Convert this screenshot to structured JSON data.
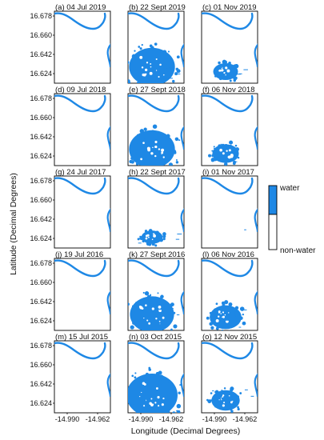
{
  "figure": {
    "y_axis_title": "Latitude (Decimal Degrees)",
    "x_axis_title": "Longitude (Decimal Degrees)",
    "y_ticks": [
      "16.678",
      "16.660",
      "16.642",
      "16.624"
    ],
    "x_ticks": [
      "-14.990",
      "-14.962"
    ],
    "legend": {
      "water_label": "water",
      "nonwater_label": "non-water",
      "water_color": "#1e88e5",
      "nonwater_color": "#ffffff"
    },
    "panels": [
      {
        "title": "(a) 04 Jul 2019",
        "flood_level": 0,
        "marsh_level": 0
      },
      {
        "title": "(b) 22 Sept 2019",
        "flood_level": 0.85,
        "marsh_level": 0.3
      },
      {
        "title": "(c) 01 Nov 2019",
        "flood_level": 0.25,
        "marsh_level": 0.6
      },
      {
        "title": "(d) 09 Jul 2018",
        "flood_level": 0,
        "marsh_level": 0
      },
      {
        "title": "(e) 27 Sept 2018",
        "flood_level": 0.85,
        "marsh_level": 0.3
      },
      {
        "title": "(f) 06 Nov 2018",
        "flood_level": 0.3,
        "marsh_level": 0.6
      },
      {
        "title": "(g) 24 Jul 2017",
        "flood_level": 0,
        "marsh_level": 0
      },
      {
        "title": "(h) 22 Sept 2017",
        "flood_level": 0.15,
        "marsh_level": 0.3
      },
      {
        "title": "(i) 01 Nov 2017",
        "flood_level": 0,
        "marsh_level": 0.1
      },
      {
        "title": "(j) 19 Jul 2016",
        "flood_level": 0,
        "marsh_level": 0
      },
      {
        "title": "(k) 27 Sept 2016",
        "flood_level": 0.8,
        "marsh_level": 0.35
      },
      {
        "title": "(l) 06 Nov 2016",
        "flood_level": 0.45,
        "marsh_level": 0.6
      },
      {
        "title": "(m) 15 Jul 2015",
        "flood_level": 0,
        "marsh_level": 0
      },
      {
        "title": "(n) 03 Oct 2015",
        "flood_level": 1.0,
        "marsh_level": 0.3
      },
      {
        "title": "(o) 12 Nov 2015",
        "flood_level": 0.35,
        "marsh_level": 0.6
      }
    ]
  }
}
